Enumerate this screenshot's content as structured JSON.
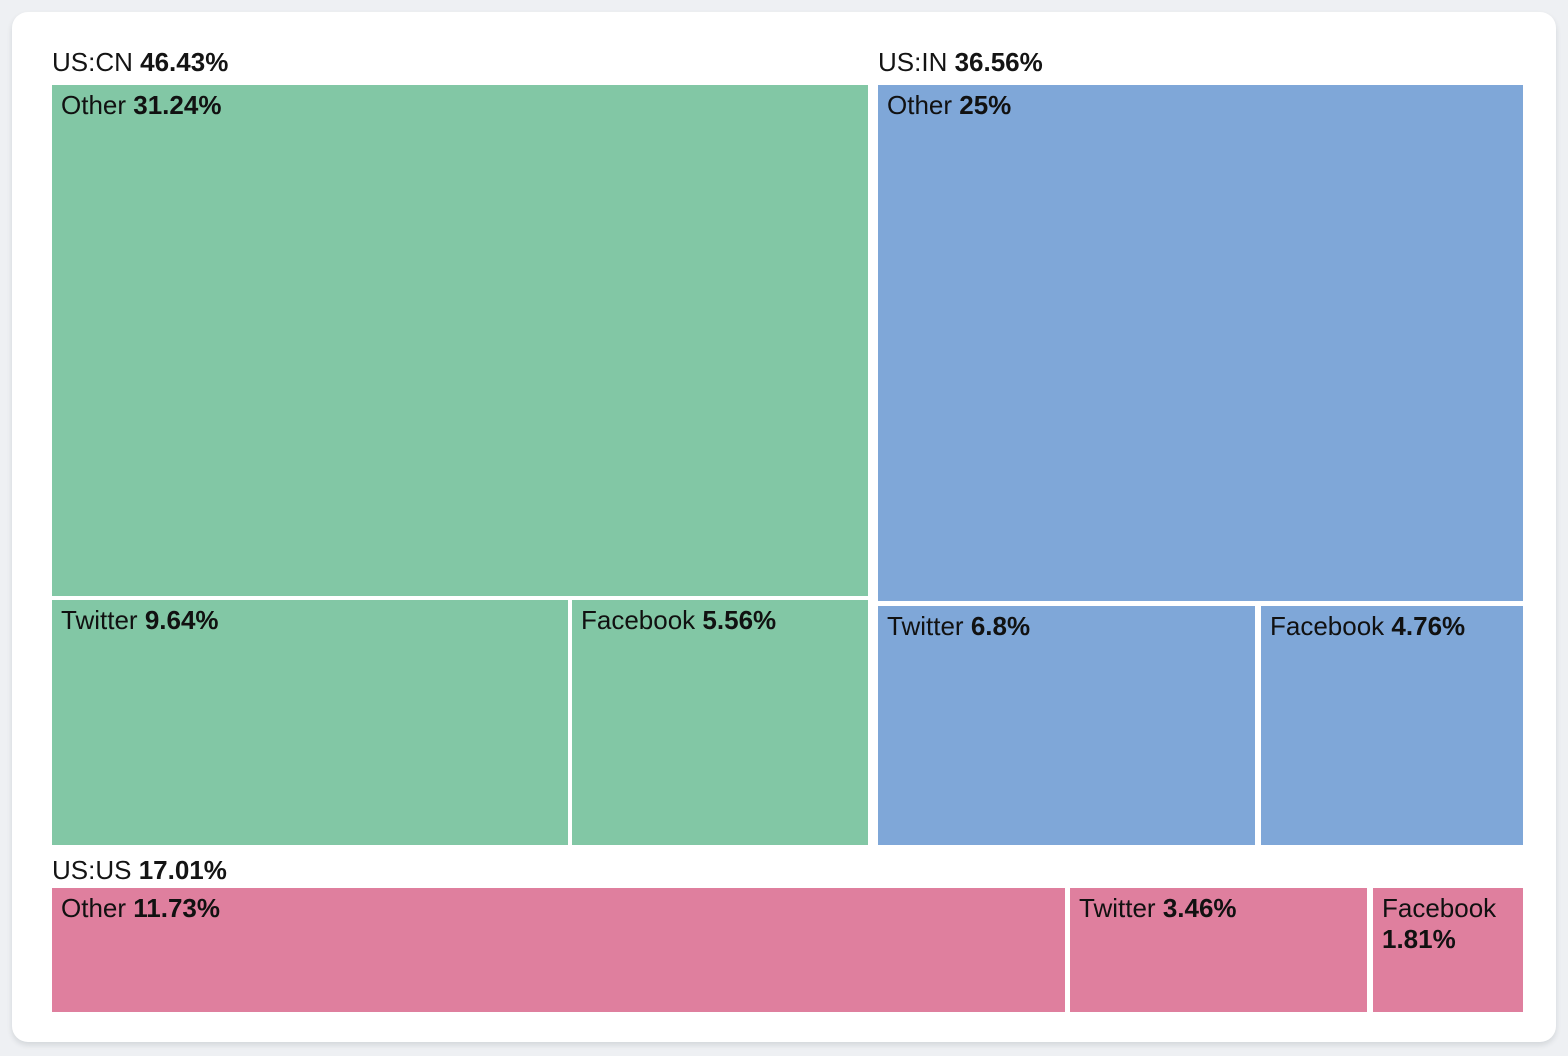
{
  "chart_data": {
    "type": "treemap",
    "title": "",
    "unit": "%",
    "legend": "none",
    "groups": [
      {
        "name": "US:CN",
        "value": 46.43,
        "value_label": "46.43%",
        "color": "#82c7a5",
        "children": [
          {
            "name": "Other",
            "value": 31.24,
            "value_label": "31.24%"
          },
          {
            "name": "Twitter",
            "value": 9.64,
            "value_label": "9.64%"
          },
          {
            "name": "Facebook",
            "value": 5.56,
            "value_label": "5.56%"
          }
        ]
      },
      {
        "name": "US:IN",
        "value": 36.56,
        "value_label": "36.56%",
        "color": "#7fa7d8",
        "children": [
          {
            "name": "Other",
            "value": 25,
            "value_label": "25%"
          },
          {
            "name": "Twitter",
            "value": 6.8,
            "value_label": "6.8%"
          },
          {
            "name": "Facebook",
            "value": 4.76,
            "value_label": "4.76%"
          }
        ]
      },
      {
        "name": "US:US",
        "value": 17.01,
        "value_label": "17.01%",
        "color": "#df7f9e",
        "children": [
          {
            "name": "Other",
            "value": 11.73,
            "value_label": "11.73%"
          },
          {
            "name": "Twitter",
            "value": 3.46,
            "value_label": "3.46%"
          },
          {
            "name": "Facebook",
            "value": 1.81,
            "value_label": "1.81%"
          }
        ]
      }
    ],
    "colors": {
      "text": "#141414",
      "card_background": "#ffffff",
      "page_background": "#eef0f3"
    }
  }
}
